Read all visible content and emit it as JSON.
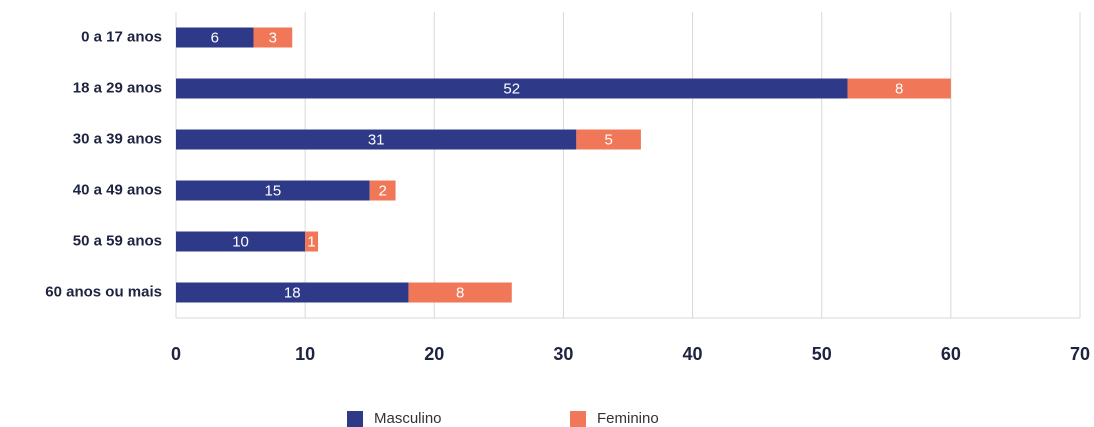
{
  "chart_data": {
    "type": "stacked-bar-horizontal",
    "categories": [
      "0 a 17 anos",
      "18 a 29 anos",
      "30 a 39 anos",
      "40 a 49 anos",
      "50 a 59 anos",
      "60 anos ou mais"
    ],
    "series": [
      {
        "name": "Masculino",
        "color": "#2e3a87",
        "values": [
          6,
          52,
          31,
          15,
          10,
          18
        ]
      },
      {
        "name": "Feminino",
        "color": "#f07858",
        "values": [
          3,
          8,
          5,
          2,
          1,
          8
        ]
      }
    ],
    "xlim": [
      0,
      70
    ],
    "xticks": [
      0,
      10,
      20,
      30,
      40,
      50,
      60,
      70
    ],
    "grid": true
  }
}
